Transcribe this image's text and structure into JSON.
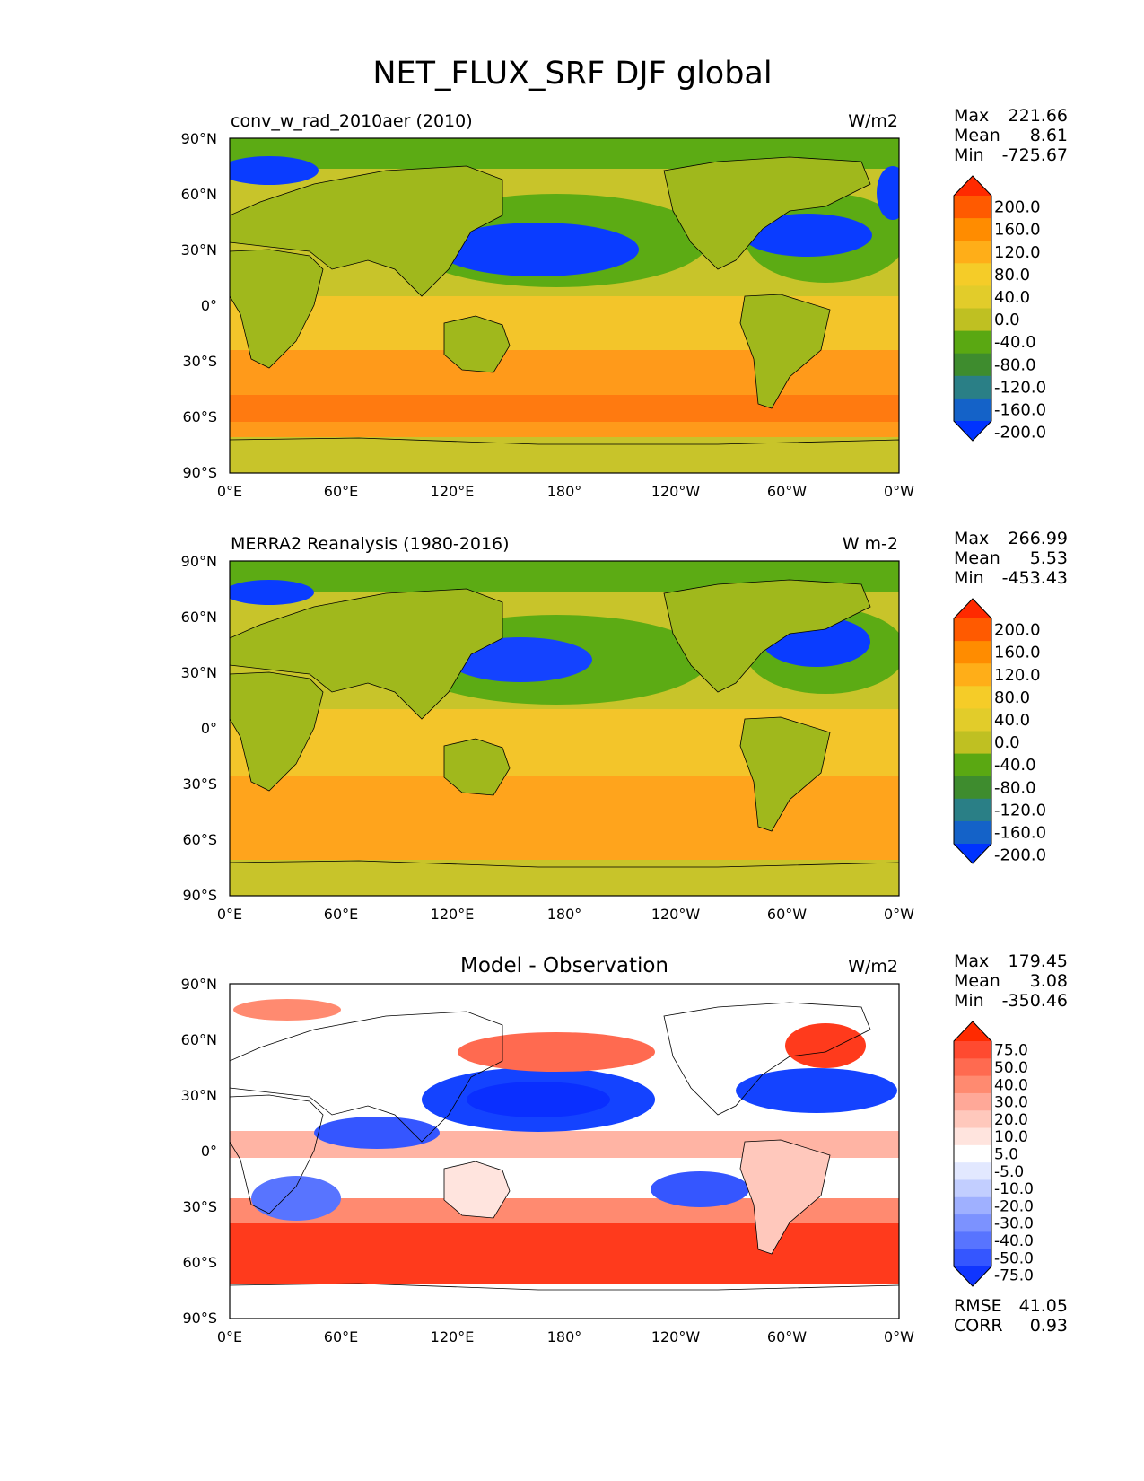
{
  "title": "NET_FLUX_SRF DJF global",
  "colors": {
    "ocean_blue": "#0a3cff",
    "land_green": "#a0b81c",
    "tropical_yellow": "#f3c52a",
    "southern_orange": "#ff9a1a",
    "diff_red": "#ff3a1c",
    "diff_blue": "#1443ff",
    "coast": "#000000"
  },
  "chart_data": [
    {
      "type": "heatmap",
      "left_title": "conv_w_rad_2010aer (2010)",
      "units": "W/m2",
      "stats": {
        "max_label": "Max",
        "max": "221.66",
        "mean_label": "Mean",
        "mean": "8.61",
        "min_label": "Min",
        "min": "-725.67"
      },
      "yticks": [
        "90°N",
        "60°N",
        "30°N",
        "0°",
        "30°S",
        "60°S",
        "90°S"
      ],
      "xticks": [
        "0°E",
        "60°E",
        "120°E",
        "180°",
        "120°W",
        "60°W",
        "0°W"
      ],
      "colorbar": {
        "levels": [
          "200.0",
          "160.0",
          "120.0",
          "80.0",
          "40.0",
          "0.0",
          "-40.0",
          "-80.0",
          "-120.0",
          "-160.0",
          "-200.0"
        ],
        "colors": [
          "#ff2a00",
          "#ff5a00",
          "#ff8c00",
          "#ffae18",
          "#f5cc28",
          "#e2cc2a",
          "#bfc022",
          "#5aa812",
          "#3e8c2e",
          "#2a7f86",
          "#1462c8",
          "#0033ff"
        ]
      }
    },
    {
      "type": "heatmap",
      "left_title": "MERRA2 Reanalysis (1980-2016)",
      "units": "W m-2",
      "stats": {
        "max_label": "Max",
        "max": "266.99",
        "mean_label": "Mean",
        "mean": "5.53",
        "min_label": "Min",
        "min": "-453.43"
      },
      "yticks": [
        "90°N",
        "60°N",
        "30°N",
        "0°",
        "30°S",
        "60°S",
        "90°S"
      ],
      "xticks": [
        "0°E",
        "60°E",
        "120°E",
        "180°",
        "120°W",
        "60°W",
        "0°W"
      ],
      "colorbar": {
        "levels": [
          "200.0",
          "160.0",
          "120.0",
          "80.0",
          "40.0",
          "0.0",
          "-40.0",
          "-80.0",
          "-120.0",
          "-160.0",
          "-200.0"
        ],
        "colors": [
          "#ff2a00",
          "#ff5a00",
          "#ff8c00",
          "#ffae18",
          "#f5cc28",
          "#e2cc2a",
          "#bfc022",
          "#5aa812",
          "#3e8c2e",
          "#2a7f86",
          "#1462c8",
          "#0033ff"
        ]
      }
    },
    {
      "type": "heatmap",
      "center_title": "Model - Observation",
      "units": "W/m2",
      "stats": {
        "max_label": "Max",
        "max": "179.45",
        "mean_label": "Mean",
        "mean": "3.08",
        "min_label": "Min",
        "min": "-350.46"
      },
      "yticks": [
        "90°N",
        "60°N",
        "30°N",
        "0°",
        "30°S",
        "60°S",
        "90°S"
      ],
      "xticks": [
        "0°E",
        "60°E",
        "120°E",
        "180°",
        "120°W",
        "60°W",
        "0°W"
      ],
      "colorbar": {
        "levels": [
          "75.0",
          "50.0",
          "40.0",
          "30.0",
          "20.0",
          "10.0",
          "5.0",
          "-5.0",
          "-10.0",
          "-20.0",
          "-30.0",
          "-40.0",
          "-50.0",
          "-75.0"
        ],
        "colors": [
          "#ff2a00",
          "#ff4a30",
          "#ff6a50",
          "#ff8a70",
          "#ffa898",
          "#ffc8bc",
          "#ffe4de",
          "#ffffff",
          "#e2e8ff",
          "#c2ceff",
          "#9fb0ff",
          "#7c92ff",
          "#5874ff",
          "#3556ff",
          "#1035ff"
        ]
      },
      "extra_stats": {
        "rmse_label": "RMSE",
        "rmse": "41.05",
        "corr_label": "CORR",
        "corr": "0.93"
      }
    }
  ]
}
